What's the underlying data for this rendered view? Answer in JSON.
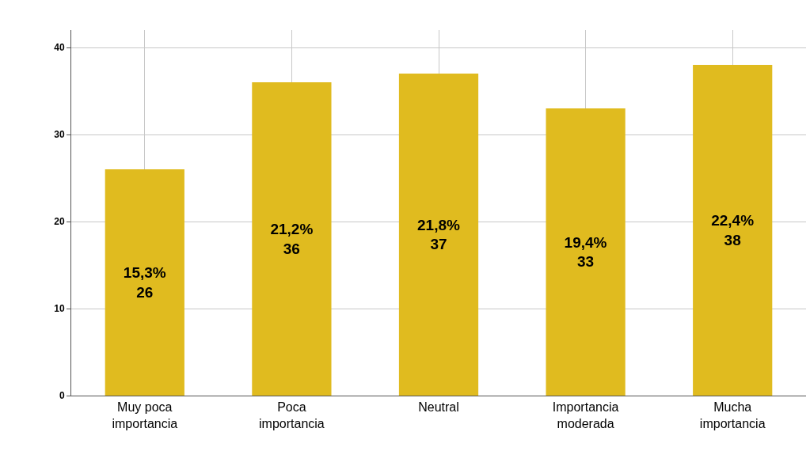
{
  "chart_data": {
    "type": "bar",
    "categories": [
      "Muy poca\nimportancia",
      "Poca\nimportancia",
      "Neutral",
      "Importancia\nmoderada",
      "Mucha\nimportancia"
    ],
    "values": [
      26,
      36,
      37,
      33,
      38
    ],
    "value_labels": [
      "15,3%\n26",
      "21,2%\n36",
      "21,8%\n37",
      "19,4%\n33",
      "22,4%\n38"
    ],
    "color": "#e0bb1f",
    "ylim": [
      0,
      42
    ],
    "yticks": [
      0,
      10,
      20,
      30,
      40
    ],
    "grid": true,
    "legend": false
  }
}
